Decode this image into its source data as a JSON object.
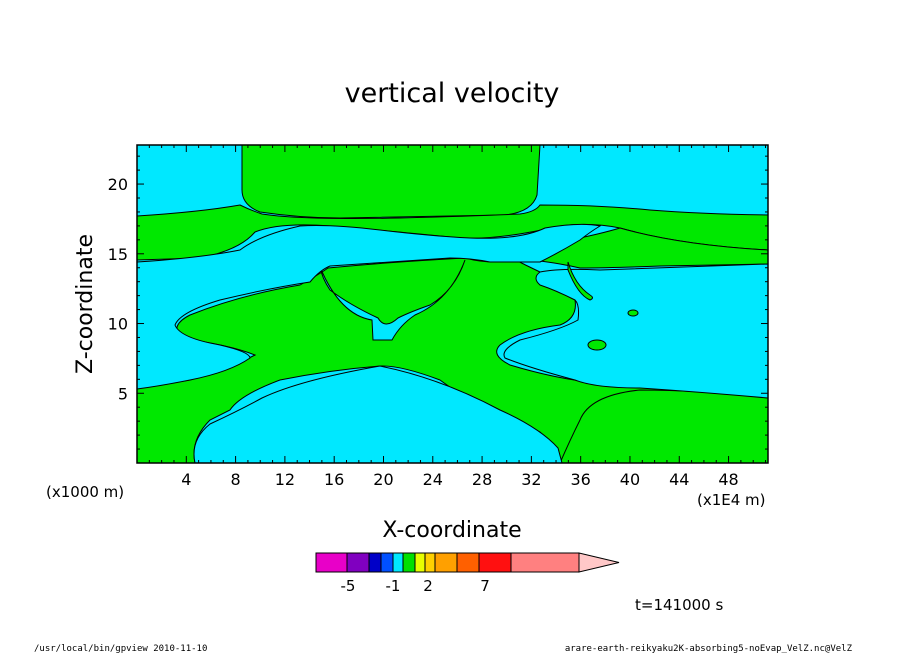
{
  "chart_data": {
    "type": "contour",
    "title": "vertical velocity",
    "xlabel": "X-coordinate",
    "ylabel": "Z-coordinate",
    "x_unit": "(x1000 m)",
    "x_tick_multiplier": "(x1E4 m)",
    "x_ticks": [
      4,
      8,
      12,
      16,
      20,
      24,
      28,
      32,
      36,
      40,
      44,
      48
    ],
    "y_ticks": [
      5,
      10,
      15,
      20
    ],
    "xlim": [
      0,
      51.2
    ],
    "ylim": [
      0,
      22.8
    ],
    "time_label": "t=141000 s",
    "colorbar": {
      "colors": [
        "#e800c8",
        "#8000c0",
        "#0000c8",
        "#0050ff",
        "#00e8ff",
        "#00e000",
        "#e8ff00",
        "#ffd000",
        "#ffa000",
        "#ff6000",
        "#ff1010",
        "#ff8080",
        "#ffc8c8"
      ],
      "tick_labels": [
        "-5",
        "-1",
        "2",
        "7"
      ]
    },
    "field_colors": {
      "negative": "#00e8ff",
      "positive": "#00e800"
    }
  },
  "footer": {
    "left": "/usr/local/bin/gpview  2010-11-10",
    "right": "arare-earth-reikyaku2K-absorbing5-noEvap_VelZ.nc@VelZ"
  }
}
